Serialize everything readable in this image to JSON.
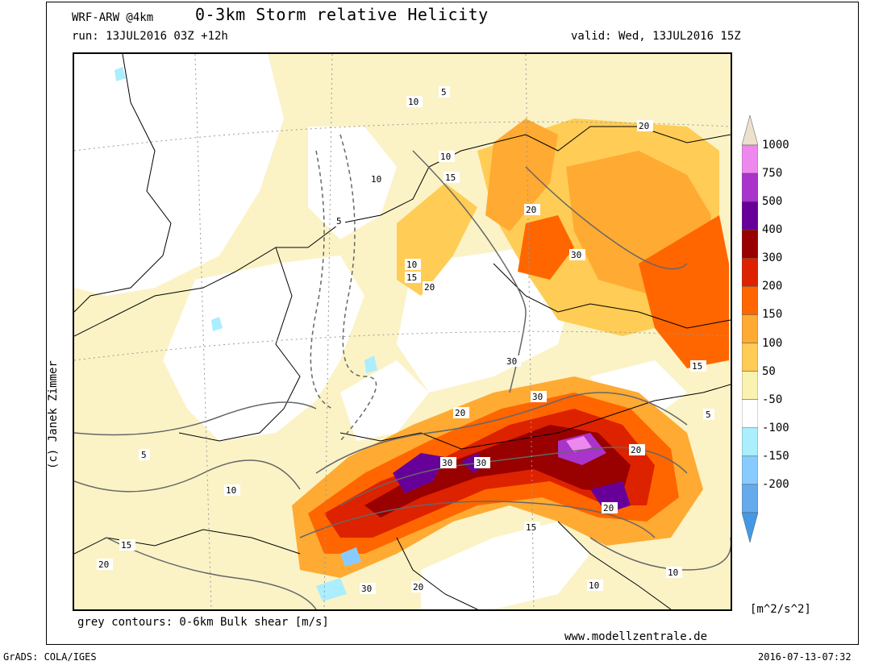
{
  "header": {
    "model": "WRF-ARW @4km",
    "title": "0-3km Storm relative Helicity",
    "run": "run: 13JUL2016 03Z +12h",
    "valid": "valid: Wed, 13JUL2016 15Z"
  },
  "colorbar": {
    "labels": [
      "1000",
      "750",
      "500",
      "400",
      "300",
      "200",
      "150",
      "100",
      "50",
      "-50",
      "-100",
      "-150",
      "-200"
    ],
    "units": "[m^2/s^2]",
    "colors": [
      "#ede0cc",
      "#ee88ee",
      "#aa33cc",
      "#660099",
      "#990000",
      "#dd2200",
      "#ff6600",
      "#ffaa33",
      "#ffcc55",
      "#f9f2b0",
      "#ffffff",
      "#aaeeff",
      "#88ccff",
      "#66aaee",
      "#4499e6"
    ]
  },
  "contour_labels": [
    "10",
    "5",
    "10",
    "20",
    "10",
    "15",
    "20",
    "30",
    "5",
    "10",
    "15",
    "20",
    "30",
    "30",
    "20",
    "30",
    "30",
    "20",
    "15",
    "5",
    "10",
    "15",
    "20",
    "30",
    "20",
    "10",
    "15",
    "20",
    "5",
    "10"
  ],
  "notes": {
    "bottom": "grey contours: 0-6km Bulk shear [m/s]",
    "website": "www.modellzentrale.de",
    "credit": "(c) Janek Zimmer"
  },
  "footer": {
    "grads": "GrADS: COLA/IGES",
    "timestamp": "2016-07-13-07:32"
  }
}
